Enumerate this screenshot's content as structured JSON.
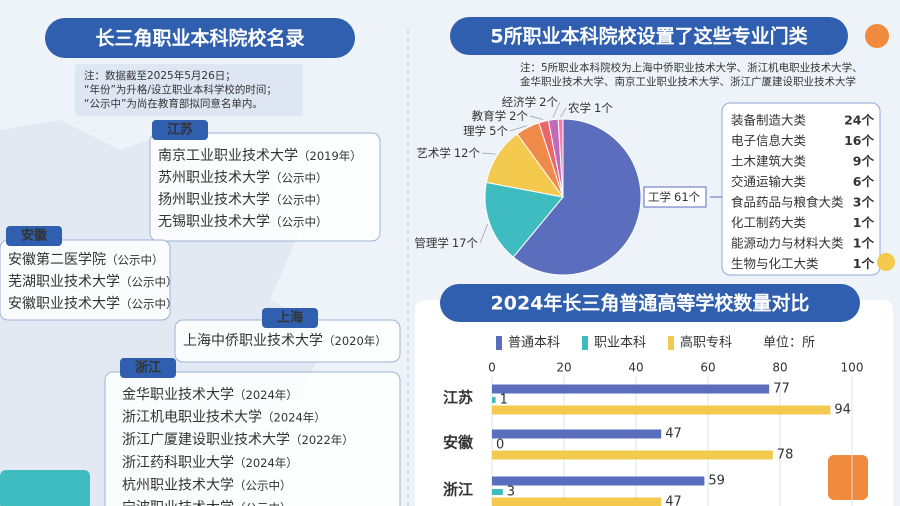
{
  "left": {
    "title": "长三角职业本科院校名录",
    "notes": [
      "注：数据截至2025年5月26日；",
      "“年份”为升格/设立职业本科学校的时间；",
      "“公示中”为尚在教育部拟同意名单内。"
    ],
    "regions": [
      {
        "name": "江苏",
        "schools": [
          {
            "name": "南京工业职业技术大学",
            "note": "（2019年）"
          },
          {
            "name": "苏州职业技术大学",
            "note": "（公示中）"
          },
          {
            "name": "扬州职业技术大学",
            "note": "（公示中）"
          },
          {
            "name": "无锡职业技术大学",
            "note": "（公示中）"
          }
        ]
      },
      {
        "name": "安徽",
        "schools": [
          {
            "name": "安徽第二医学院",
            "note": "（公示中）"
          },
          {
            "name": "芜湖职业技术大学",
            "note": "（公示中）"
          },
          {
            "name": "安徽职业技术大学",
            "note": "（公示中）"
          }
        ]
      },
      {
        "name": "上海",
        "schools": [
          {
            "name": "上海中侨职业技术大学",
            "note": "（2020年）"
          }
        ]
      },
      {
        "name": "浙江",
        "schools": [
          {
            "name": "金华职业技术大学",
            "note": "（2024年）"
          },
          {
            "name": "浙江机电职业技术大学",
            "note": "（2024年）"
          },
          {
            "name": "浙江广厦建设职业技术大学",
            "note": "（2022年）"
          },
          {
            "name": "浙江药科职业大学",
            "note": "（2024年）"
          },
          {
            "name": "杭州职业技术大学",
            "note": "（公示中）"
          },
          {
            "name": "宁波职业技术大学",
            "note": "（公示中）"
          }
        ]
      }
    ]
  },
  "chart_data": [
    {
      "type": "pie",
      "title": "5所职业本科院校设置了这些专业门类",
      "note": [
        "注：5所职业本科院校为上海中侨职业技术大学、浙江机电职业技术大学、",
        "金华职业技术大学、南京工业职业技术大学、浙江广厦建设职业技术大学"
      ],
      "categories": [
        "工学",
        "管理学",
        "艺术学",
        "理学",
        "教育学",
        "经济学",
        "农学"
      ],
      "values": [
        61,
        17,
        12,
        5,
        2,
        2,
        1
      ],
      "value_labels": [
        "61个",
        "17个",
        "12个",
        "5个",
        "2个",
        "2个",
        "1个"
      ],
      "colors": [
        "#5b6dbd",
        "#3fbcc0",
        "#f3c94e",
        "#ef8a4a",
        "#e9676b",
        "#c06ab8",
        "#f17fb1"
      ],
      "breakdown": [
        {
          "name": "装备制造大类",
          "count": "24个"
        },
        {
          "name": "电子信息大类",
          "count": "16个"
        },
        {
          "name": "土木建筑大类",
          "count": "9个"
        },
        {
          "name": "交通运输大类",
          "count": "6个"
        },
        {
          "name": "食品药品与粮食大类",
          "count": "3个"
        },
        {
          "name": "化工制药大类",
          "count": "1个"
        },
        {
          "name": "能源动力与材料大类",
          "count": "1个"
        },
        {
          "name": "生物与化工大类",
          "count": "1个"
        }
      ]
    },
    {
      "type": "bar",
      "orientation": "horizontal",
      "title": "2024年长三角普通高等学校数量对比",
      "unit_label": "单位：所",
      "categories": [
        "江苏",
        "安徽",
        "浙江"
      ],
      "series": [
        {
          "name": "普通本科",
          "color": "#5b6dbd",
          "values": [
            77,
            47,
            59
          ]
        },
        {
          "name": "职业本科",
          "color": "#3fbcc0",
          "values": [
            1,
            0,
            3
          ]
        },
        {
          "name": "高职专科",
          "color": "#f3c94e",
          "values": [
            94,
            78,
            47
          ]
        }
      ],
      "xlim": [
        0,
        100
      ],
      "xticks": [
        0,
        20,
        40,
        60,
        80,
        100
      ],
      "grid": true
    }
  ]
}
